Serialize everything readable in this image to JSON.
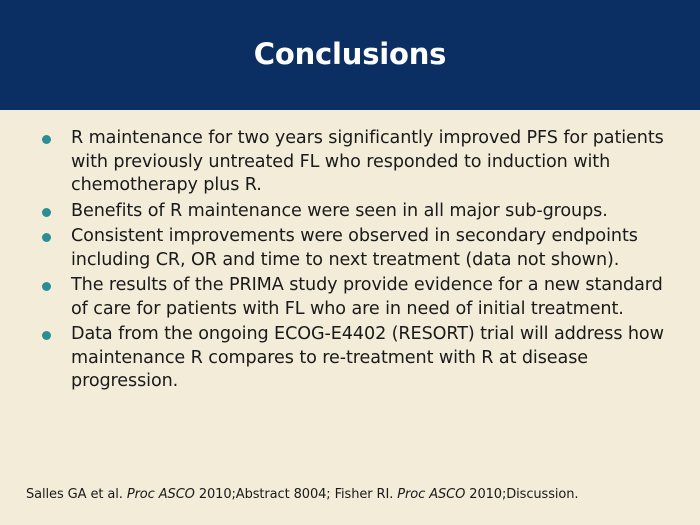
{
  "header": {
    "title": "Conclusions"
  },
  "bullets": [
    {
      "text": "R maintenance for two years significantly improved PFS for patients with previously untreated FL who responded to induction with chemotherapy plus R."
    },
    {
      "text": "Benefits of R maintenance were seen in all major sub-groups."
    },
    {
      "text": "Consistent improvements were observed in secondary endpoints including CR, OR and time to next treatment (data not shown)."
    },
    {
      "text": "The results of the PRIMA study provide evidence for a new standard of care for patients with FL who are in need of initial treatment."
    },
    {
      "text": "Data from the ongoing ECOG-E4402 (RESORT) trial will address how maintenance R compares to re-treatment with R at disease progression."
    }
  ],
  "citation": {
    "part1": "Salles GA et al. ",
    "journal1": "Proc ASCO",
    "part2": " 2010;Abstract 8004; Fisher RI. ",
    "journal2": "Proc ASCO",
    "part3": " 2010;Discussion."
  },
  "colors": {
    "header_bg": "#0b2e63",
    "slide_bg": "#f2ecd9",
    "bullet": "#2a8f95",
    "title_text": "#ffffff"
  },
  "icons": {
    "bullet": "bullet-dot-icon"
  }
}
